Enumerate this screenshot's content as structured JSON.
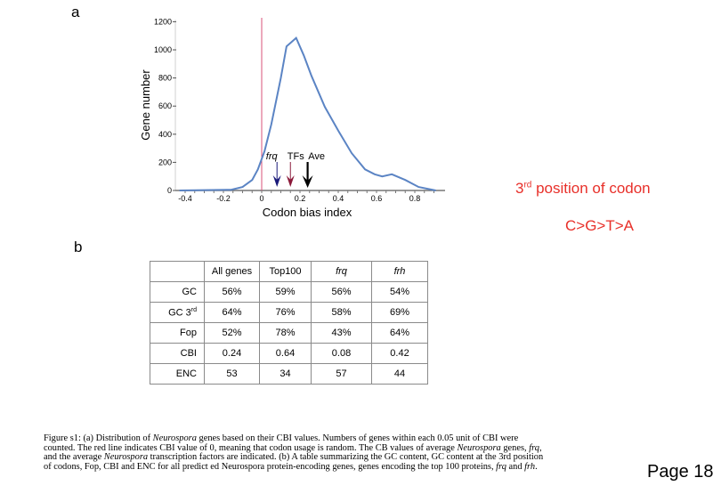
{
  "panel_a": {
    "label": "a"
  },
  "panel_b": {
    "label": "b"
  },
  "chart_data": {
    "type": "line",
    "title": "",
    "xlabel": "Codon bias index",
    "ylabel": "Gene number",
    "xlim": [
      -0.43,
      0.92
    ],
    "ylim": [
      0,
      1200
    ],
    "x_ticks": [
      "-0.4",
      "-0.2",
      "0",
      "0.2",
      "0.4",
      "0.6",
      "0.8"
    ],
    "y_ticks": [
      "0",
      "200",
      "400",
      "600",
      "800",
      "1000",
      "1200"
    ],
    "grid": false,
    "series": [
      {
        "name": "Gene distribution",
        "color": "#5b84c4",
        "x": [
          -0.43,
          -0.16,
          -0.1,
          -0.05,
          -0.02,
          0.015,
          0.05,
          0.1,
          0.13,
          0.18,
          0.22,
          0.26,
          0.33,
          0.4,
          0.47,
          0.54,
          0.59,
          0.63,
          0.68,
          0.75,
          0.82,
          0.91
        ],
        "values": [
          0,
          5,
          25,
          75,
          150,
          280,
          470,
          800,
          1025,
          1085,
          960,
          815,
          595,
          425,
          265,
          150,
          115,
          100,
          115,
          75,
          25,
          0
        ]
      }
    ],
    "reference_line": {
      "x": 0,
      "color": "#d9507a",
      "meaning": "random codon usage"
    },
    "annotations": [
      {
        "label": "frq",
        "x": 0.08,
        "color": "#1a1a7a",
        "italic": true
      },
      {
        "label": "TFs",
        "x": 0.15,
        "color": "#8b1a3a",
        "italic": false
      },
      {
        "label": "Ave",
        "x": 0.24,
        "color": "#000000",
        "italic": false
      }
    ]
  },
  "table": {
    "headers": [
      "",
      "All genes",
      "Top100",
      "frq",
      "frh"
    ],
    "rows": [
      {
        "label": "GC",
        "values": [
          "56%",
          "59%",
          "56%",
          "54%"
        ]
      },
      {
        "label": "GC 3",
        "sup": "rd",
        "values": [
          "64%",
          "76%",
          "58%",
          "69%"
        ]
      },
      {
        "label": "Fop",
        "values": [
          "52%",
          "78%",
          "43%",
          "64%"
        ]
      },
      {
        "label": "CBI",
        "values": [
          "0.24",
          "0.64",
          "0.08",
          "0.42"
        ]
      },
      {
        "label": "ENC",
        "values": [
          "53",
          "34",
          "57",
          "44"
        ]
      }
    ]
  },
  "caption": {
    "p1": "Figure s1: (a) Distribution of ",
    "i1": "Neurospora",
    "p2": " genes based on their CBI values. Numbers of genes within each 0.05 unit of CBI were counted. The red line indicates CBI value of 0, meaning that codon usage is random. The CB values of average ",
    "i2": "Neurospora",
    "p3": " genes, ",
    "i3": "frq",
    "p4": ", and the average ",
    "i4": "Neurospora",
    "p5": " transcription factors are indicated. (b) A table summarizing the GC content, GC content at the 3rd position of codons, Fop, CBI and ENC for all predict ed Neurospora protein-encoding genes, genes encoding the top 100 proteins, ",
    "i5": "frq",
    "p6": " and ",
    "i6": "frh",
    "p7": "."
  },
  "note": {
    "line1_prefix": "3",
    "line1_sup": "rd",
    "line1_rest": " position of codon",
    "line2": "C>G>T>A",
    "color": "#e8302a"
  },
  "page_label": "Page 18"
}
